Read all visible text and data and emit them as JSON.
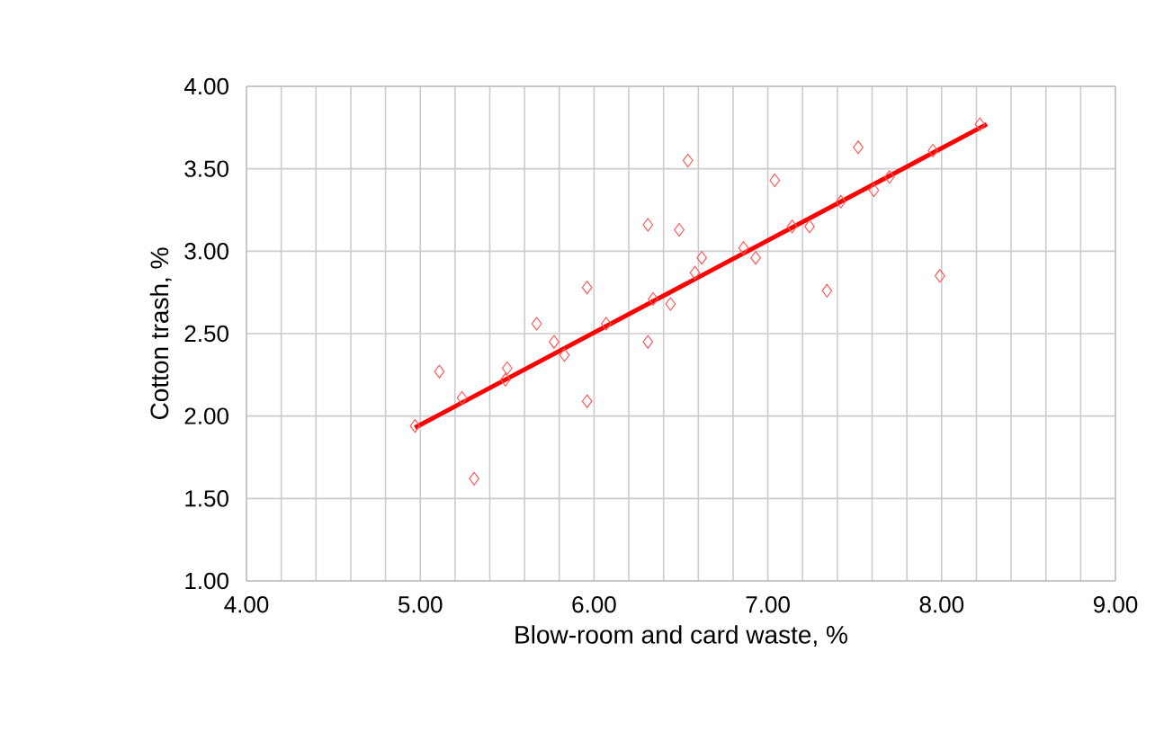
{
  "chart_data": {
    "type": "scatter",
    "xlabel": "Blow-room and card waste, %",
    "ylabel": "Cotton trash, %",
    "xlim": [
      4,
      9
    ],
    "ylim": [
      1,
      4
    ],
    "xticks": [
      {
        "value": 4,
        "label": "4.00"
      },
      {
        "value": 4.2,
        "label": null
      },
      {
        "value": 4.4,
        "label": null
      },
      {
        "value": 4.6,
        "label": null
      },
      {
        "value": 4.8,
        "label": null
      },
      {
        "value": 5,
        "label": "5.00"
      },
      {
        "value": 5.2,
        "label": null
      },
      {
        "value": 5.4,
        "label": null
      },
      {
        "value": 5.6,
        "label": null
      },
      {
        "value": 5.8,
        "label": null
      },
      {
        "value": 6,
        "label": "6.00"
      },
      {
        "value": 6.2,
        "label": null
      },
      {
        "value": 6.4,
        "label": null
      },
      {
        "value": 6.6,
        "label": null
      },
      {
        "value": 6.8,
        "label": null
      },
      {
        "value": 7,
        "label": "7.00"
      },
      {
        "value": 7.2,
        "label": null
      },
      {
        "value": 7.4,
        "label": null
      },
      {
        "value": 7.6,
        "label": null
      },
      {
        "value": 7.8,
        "label": null
      },
      {
        "value": 8,
        "label": "8.00"
      },
      {
        "value": 8.2,
        "label": null
      },
      {
        "value": 8.4,
        "label": null
      },
      {
        "value": 8.6,
        "label": null
      },
      {
        "value": 8.8,
        "label": null
      },
      {
        "value": 9,
        "label": "9.00"
      }
    ],
    "yticks": [
      {
        "value": 1,
        "label": "1.00"
      },
      {
        "value": 1.5,
        "label": "1.50"
      },
      {
        "value": 2,
        "label": "2.00"
      },
      {
        "value": 2.5,
        "label": "2.50"
      },
      {
        "value": 3,
        "label": "3.00"
      },
      {
        "value": 3.5,
        "label": "3.50"
      },
      {
        "value": 4,
        "label": "4.00"
      }
    ],
    "grid": true,
    "series": [
      {
        "marker": "diamond",
        "color": "#ff5a5a",
        "x": [
          4.97,
          5.11,
          5.24,
          5.31,
          5.49,
          5.5,
          5.67,
          5.77,
          5.83,
          5.96,
          5.96,
          6.07,
          6.31,
          6.31,
          6.34,
          6.44,
          6.49,
          6.54,
          6.58,
          6.62,
          6.86,
          6.93,
          7.04,
          7.14,
          7.24,
          7.34,
          7.42,
          7.52,
          7.61,
          7.7,
          7.95,
          7.99,
          8.22
        ],
        "values": [
          1.94,
          2.27,
          2.11,
          1.62,
          2.22,
          2.29,
          2.56,
          2.45,
          2.37,
          2.09,
          2.78,
          2.56,
          3.16,
          2.45,
          2.71,
          2.68,
          3.13,
          3.55,
          2.87,
          2.96,
          3.02,
          2.96,
          3.43,
          3.15,
          3.15,
          2.76,
          3.3,
          3.63,
          3.37,
          3.45,
          3.61,
          2.85,
          3.77
        ]
      },
      {
        "type": "line",
        "marker": "none",
        "line_style": "solid",
        "color": "#ff0000",
        "x": [
          4.97,
          8.26
        ],
        "values": [
          1.93,
          3.77
        ]
      }
    ]
  }
}
